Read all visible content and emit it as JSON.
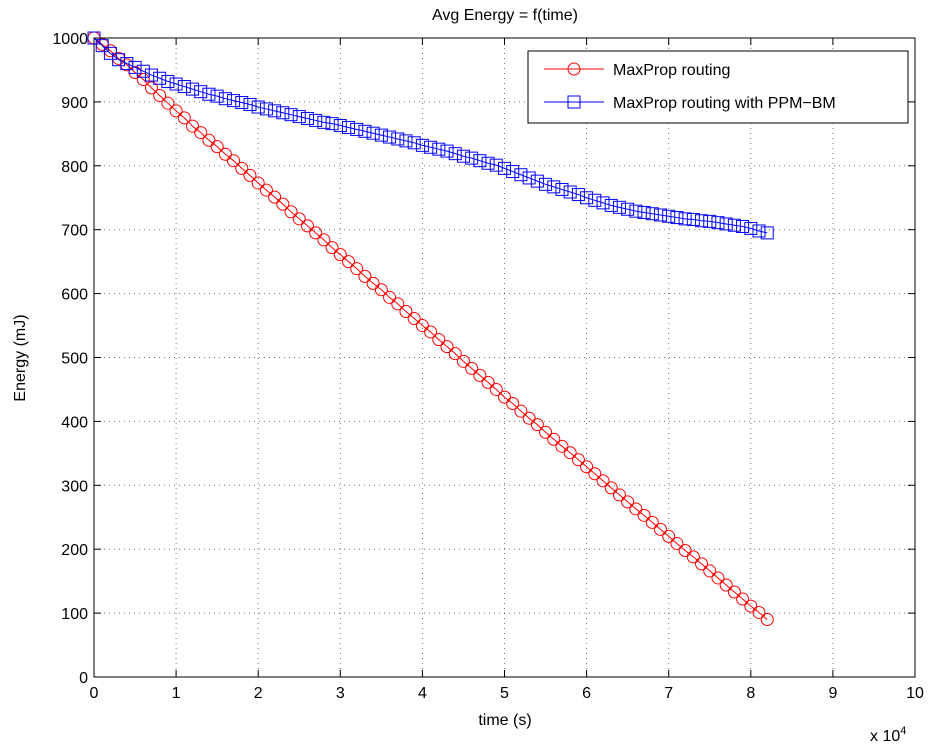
{
  "chart_data": {
    "type": "line",
    "title": "Avg Energy = f(time)",
    "xlabel": "time (s)",
    "ylabel": "Energy (mJ)",
    "x_multiplier_label": "x 10",
    "x_multiplier_exponent": "4",
    "xlim": [
      0,
      10
    ],
    "ylim": [
      0,
      1000
    ],
    "xticks": [
      "0",
      "1",
      "2",
      "3",
      "4",
      "5",
      "6",
      "7",
      "8",
      "9",
      "10"
    ],
    "yticks": [
      "0",
      "100",
      "200",
      "300",
      "400",
      "500",
      "600",
      "700",
      "800",
      "900",
      "1000"
    ],
    "grid": true,
    "legend_position": "top-right",
    "x_step": 0.1,
    "series": [
      {
        "name": "MaxProp routing",
        "color": "#ff0000",
        "marker": "circle",
        "values": [
          1000,
          990,
          980,
          968,
          958,
          946,
          935,
          922,
          910,
          898,
          886,
          875,
          862,
          852,
          840,
          830,
          818,
          808,
          796,
          785,
          773,
          762,
          751,
          740,
          728,
          717,
          706,
          695,
          684,
          672,
          661,
          650,
          639,
          627,
          616,
          606,
          594,
          584,
          572,
          561,
          550,
          540,
          528,
          517,
          506,
          494,
          483,
          472,
          461,
          450,
          438,
          428,
          416,
          405,
          395,
          383,
          372,
          361,
          351,
          340,
          329,
          318,
          307,
          296,
          285,
          274,
          263,
          253,
          242,
          231,
          220,
          209,
          198,
          188,
          177,
          166,
          155,
          144,
          133,
          122,
          111,
          101,
          90
        ]
      },
      {
        "name": "MaxProp routing with PPM−BM",
        "color": "#0000ff",
        "marker": "square",
        "values": [
          1000,
          988,
          976,
          966,
          960,
          954,
          948,
          942,
          937,
          932,
          928,
          924,
          920,
          916,
          912,
          909,
          905,
          902,
          899,
          896,
          892,
          889,
          886,
          883,
          880,
          877,
          874,
          871,
          868,
          866,
          863,
          860,
          857,
          854,
          851,
          848,
          845,
          842,
          839,
          836,
          832,
          829,
          826,
          823,
          819,
          815,
          812,
          808,
          804,
          801,
          796,
          791,
          786,
          781,
          776,
          771,
          767,
          763,
          759,
          755,
          750,
          746,
          742,
          738,
          735,
          732,
          729,
          727,
          725,
          723,
          721,
          719,
          717,
          716,
          714,
          713,
          711,
          709,
          707,
          705,
          702,
          698,
          695
        ]
      }
    ]
  }
}
